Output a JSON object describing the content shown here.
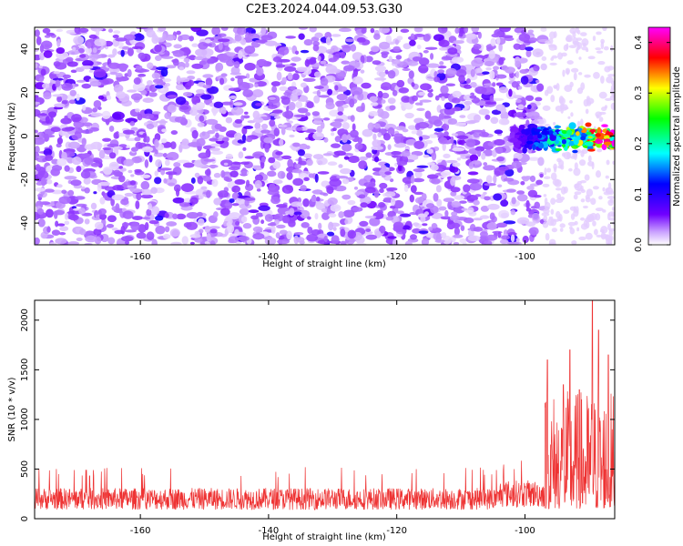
{
  "title": "C2E3.2024.044.09.53.G30",
  "chart_data": [
    {
      "type": "heatmap",
      "xlabel": "Height of straight line (km)",
      "ylabel": "Frequency (Hz)",
      "xlim": [
        -176.5,
        -86
      ],
      "ylim": [
        -50,
        50
      ],
      "xticks": [
        -160,
        -140,
        -120,
        -100
      ],
      "yticks": [
        -40,
        -20,
        0,
        20,
        40
      ],
      "colorbar": {
        "label": "Normalized spectral amplitude",
        "range": [
          0,
          0.43
        ],
        "ticks": [
          "0.0",
          "0.1",
          "0.2",
          "0.3",
          "0.4"
        ],
        "tick_values": [
          0.0,
          0.1,
          0.2,
          0.3,
          0.4
        ],
        "colors": [
          "#ffffff",
          "#7000ff",
          "#0000ff",
          "#00ffff",
          "#00ff00",
          "#ffff00",
          "#ff0000",
          "#ff00ff"
        ]
      },
      "noise_region": {
        "x": [
          -176.5,
          -97
        ],
        "amplitude": [
          0.0,
          0.05
        ]
      },
      "signal_band": {
        "x": [
          -102,
          -86
        ],
        "frequency": [
          -8,
          6
        ],
        "amplitude_peak": 0.4
      }
    },
    {
      "type": "line",
      "xlabel": "Height of straight line (km)",
      "ylabel": "SNR (10 * v/v)",
      "xlim": [
        -176.5,
        -86
      ],
      "ylim": [
        0,
        2200
      ],
      "xticks": [
        -160,
        -140,
        -120,
        -100
      ],
      "yticks": [
        0,
        500,
        1000,
        1500,
        2000
      ],
      "color": "#ee3333",
      "segments": [
        {
          "x": [
            -176.5,
            -104
          ],
          "mean": 200,
          "range": [
            80,
            520
          ]
        },
        {
          "x": [
            -104,
            -97
          ],
          "mean": 250,
          "range": [
            100,
            600
          ]
        },
        {
          "x": [
            -97,
            -86
          ],
          "mean": 600,
          "range": [
            100,
            2200
          ]
        }
      ],
      "peaks": [
        {
          "x": -96.5,
          "y": 1600
        },
        {
          "x": -94,
          "y": 1350
        },
        {
          "x": -93,
          "y": 1700
        },
        {
          "x": -91.5,
          "y": 1300
        },
        {
          "x": -89.5,
          "y": 2200
        },
        {
          "x": -88.5,
          "y": 1900
        },
        {
          "x": -87,
          "y": 1650
        }
      ]
    }
  ]
}
